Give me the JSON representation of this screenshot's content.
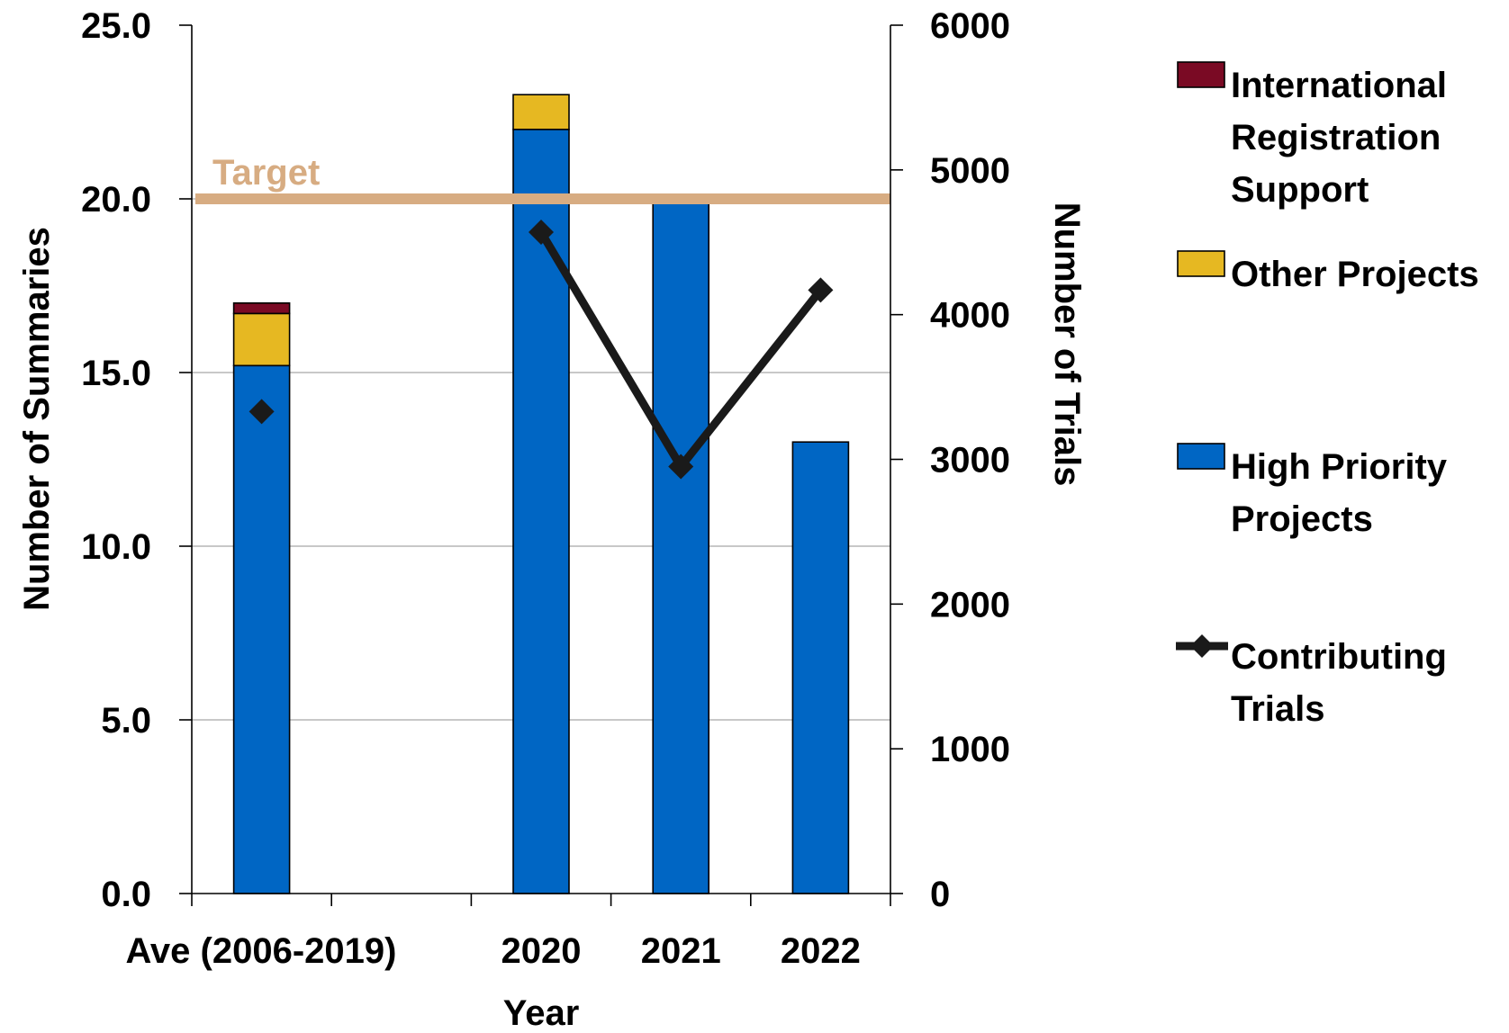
{
  "chart_data": {
    "type": "bar",
    "stacked": true,
    "categories": [
      "Ave (2006-2019)",
      "",
      "2020",
      "2021",
      "2022"
    ],
    "series": [
      {
        "name": "High Priority Projects",
        "axis": "left",
        "color": "#0066C4",
        "values": [
          15.2,
          null,
          22.0,
          20.0,
          13.0
        ]
      },
      {
        "name": "Other Projects",
        "axis": "left",
        "color": "#E6B822",
        "values": [
          1.5,
          null,
          1.0,
          0,
          0
        ]
      },
      {
        "name": "International Registration Support",
        "axis": "left",
        "color": "#7A0A24",
        "values": [
          0.3,
          null,
          0,
          0,
          0
        ]
      },
      {
        "name": "Contributing Trials",
        "axis": "right",
        "type": "line",
        "color": "#1a1a1a",
        "values": [
          3330,
          null,
          4570,
          2950,
          4170
        ],
        "connected_from_index": 2
      }
    ],
    "target": {
      "label": "Target",
      "value": 20.0,
      "color": "#D7AC82"
    },
    "xlabel": "Year",
    "ylabel": "Number of Summaries",
    "y2label": "Number of Trials",
    "ylim": [
      0,
      25
    ],
    "y2lim": [
      0,
      6000
    ],
    "yticks": [
      "0.0",
      "5.0",
      "10.0",
      "15.0",
      "20.0",
      "25.0"
    ],
    "y2ticks": [
      "0",
      "1000",
      "2000",
      "3000",
      "4000",
      "5000",
      "6000"
    ],
    "grid": "horizontal",
    "legend_position": "right",
    "legend": [
      {
        "series": "International Registration Support",
        "lines": [
          "International",
          "Registration",
          "Support"
        ],
        "kind": "box",
        "color": "#7A0A24"
      },
      {
        "series": "Other Projects",
        "lines": [
          "Other Projects"
        ],
        "kind": "box",
        "color": "#E6B822"
      },
      {
        "series": "High Priority Projects",
        "lines": [
          "High Priority",
          "Projects"
        ],
        "kind": "box",
        "color": "#0066C4"
      },
      {
        "series": "Contributing Trials",
        "lines": [
          "Contributing",
          "Trials"
        ],
        "kind": "line",
        "color": "#1a1a1a"
      }
    ]
  }
}
